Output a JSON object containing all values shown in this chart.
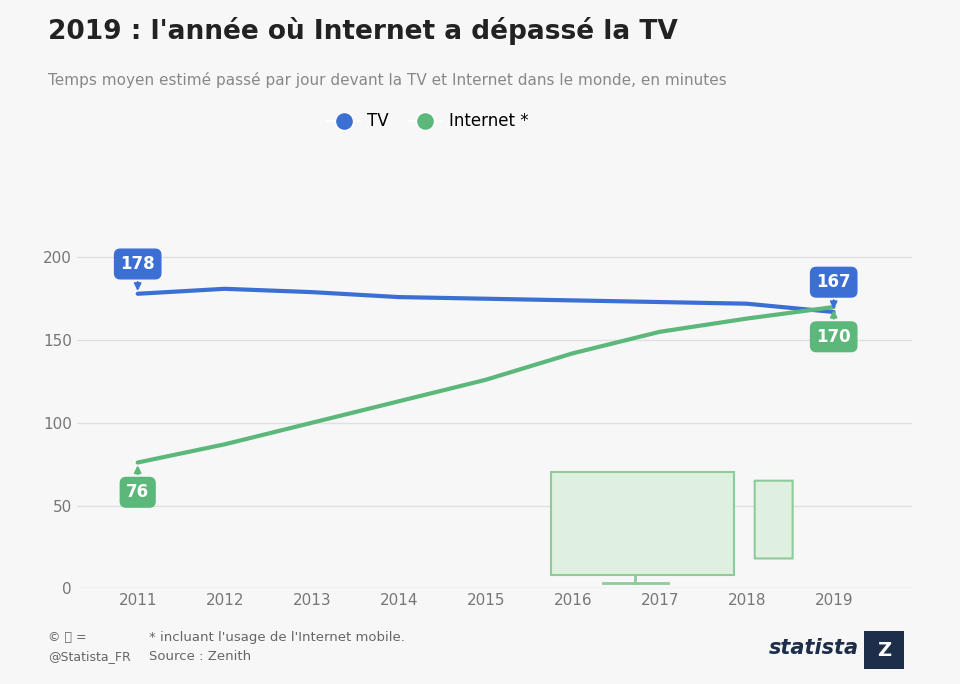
{
  "title": "2019 : l'année où Internet a dépassé la TV",
  "subtitle": "Temps moyen estimé passé par jour devant la TV et Internet dans le monde, en minutes",
  "years_tv": [
    2011,
    2012,
    2013,
    2014,
    2015,
    2016,
    2017,
    2018,
    2019
  ],
  "tv_values": [
    178,
    181,
    179,
    176,
    175,
    174,
    173,
    172,
    167
  ],
  "years_internet": [
    2011,
    2012,
    2013,
    2014,
    2015,
    2016,
    2017,
    2018,
    2019
  ],
  "internet_values": [
    76,
    87,
    100,
    113,
    126,
    142,
    155,
    163,
    170
  ],
  "tv_color": "#3b6fd4",
  "internet_color": "#5cb87a",
  "tv_label": "TV",
  "internet_label": "Internet *",
  "yticks": [
    0,
    50,
    100,
    150,
    200
  ],
  "xticks": [
    2011,
    2012,
    2013,
    2014,
    2015,
    2016,
    2017,
    2018,
    2019
  ],
  "ylim": [
    0,
    215
  ],
  "xlim": [
    2010.3,
    2019.9
  ],
  "bg_color": "#f7f7f7",
  "grid_color": "#e0e0e0",
  "footnote1": "* incluant l'usage de l'Internet mobile.",
  "footnote2": "Source : Zenith",
  "title_color": "#222222",
  "subtitle_color": "#888888",
  "tick_color": "#777777",
  "monitor_color": "#dff0e0",
  "monitor_edge": "#8ecb9a"
}
